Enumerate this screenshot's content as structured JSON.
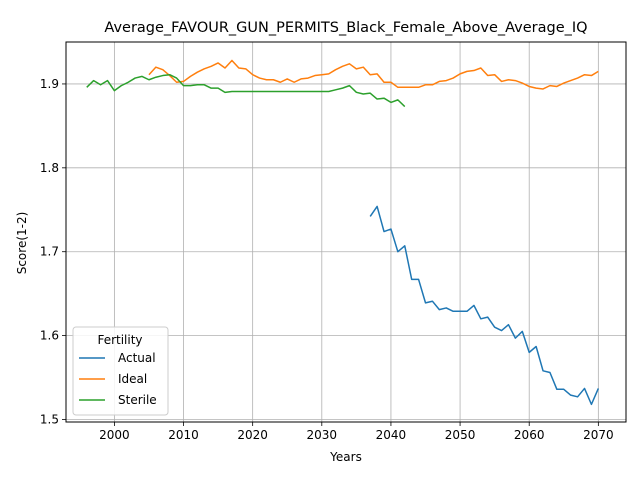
{
  "chart_data": {
    "type": "line",
    "title": "Average_FAVOUR_GUN_PERMITS_Black_Female_Above_Average_IQ",
    "xlabel": "Years",
    "ylabel": "Score(1-2)",
    "xlim": [
      1993,
      2074
    ],
    "ylim": [
      1.497,
      1.95
    ],
    "xticks": [
      2000,
      2010,
      2020,
      2030,
      2040,
      2050,
      2060,
      2070
    ],
    "yticks": [
      1.5,
      1.6,
      1.7,
      1.8,
      1.9
    ],
    "grid": true,
    "legend": {
      "title": "Fertility",
      "position": "lower-left"
    },
    "series": [
      {
        "name": "Actual",
        "color": "#1f77b4",
        "x": [
          2037,
          2038,
          2039,
          2040,
          2041,
          2042,
          2043,
          2044,
          2045,
          2046,
          2047,
          2048,
          2049,
          2050,
          2051,
          2052,
          2053,
          2054,
          2055,
          2056,
          2057,
          2058,
          2059,
          2060,
          2061,
          2062,
          2063,
          2064,
          2065,
          2066,
          2067,
          2068,
          2069,
          2070
        ],
        "y": [
          1.742,
          1.754,
          1.724,
          1.727,
          1.7,
          1.707,
          1.667,
          1.667,
          1.639,
          1.641,
          1.631,
          1.633,
          1.629,
          1.629,
          1.629,
          1.636,
          1.62,
          1.622,
          1.61,
          1.606,
          1.613,
          1.597,
          1.605,
          1.58,
          1.587,
          1.558,
          1.556,
          1.536,
          1.536,
          1.529,
          1.527,
          1.537,
          1.518,
          1.537
        ]
      },
      {
        "name": "Ideal",
        "color": "#ff7f0e",
        "x": [
          2005,
          2006,
          2007,
          2008,
          2009,
          2010,
          2011,
          2012,
          2013,
          2014,
          2015,
          2016,
          2017,
          2018,
          2019,
          2020,
          2021,
          2022,
          2023,
          2024,
          2025,
          2026,
          2027,
          2028,
          2029,
          2030,
          2031,
          2032,
          2033,
          2034,
          2035,
          2036,
          2037,
          2038,
          2039,
          2040,
          2041,
          2042,
          2043,
          2044,
          2045,
          2046,
          2047,
          2048,
          2049,
          2050,
          2051,
          2052,
          2053,
          2054,
          2055,
          2056,
          2057,
          2058,
          2059,
          2060,
          2061,
          2062,
          2063,
          2064,
          2065,
          2066,
          2067,
          2068,
          2069,
          2070
        ],
        "y": [
          1.911,
          1.92,
          1.917,
          1.91,
          1.902,
          1.903,
          1.909,
          1.914,
          1.918,
          1.921,
          1.925,
          1.919,
          1.928,
          1.919,
          1.918,
          1.911,
          1.907,
          1.905,
          1.905,
          1.902,
          1.906,
          1.902,
          1.906,
          1.907,
          1.91,
          1.911,
          1.912,
          1.917,
          1.921,
          1.924,
          1.918,
          1.92,
          1.911,
          1.912,
          1.902,
          1.902,
          1.896,
          1.896,
          1.896,
          1.896,
          1.899,
          1.899,
          1.903,
          1.904,
          1.907,
          1.912,
          1.915,
          1.916,
          1.919,
          1.91,
          1.911,
          1.903,
          1.905,
          1.904,
          1.901,
          1.897,
          1.895,
          1.894,
          1.898,
          1.897,
          1.901,
          1.904,
          1.907,
          1.911,
          1.91,
          1.915
        ]
      },
      {
        "name": "Sterile",
        "color": "#2ca02c",
        "x": [
          1996,
          1997,
          1998,
          1999,
          2000,
          2001,
          2002,
          2003,
          2004,
          2005,
          2006,
          2007,
          2008,
          2009,
          2010,
          2011,
          2012,
          2013,
          2014,
          2015,
          2016,
          2017,
          2018,
          2019,
          2020,
          2021,
          2022,
          2023,
          2024,
          2025,
          2026,
          2027,
          2028,
          2029,
          2030,
          2031,
          2032,
          2033,
          2034,
          2035,
          2036,
          2037,
          2038,
          2039,
          2040,
          2041,
          2042
        ],
        "y": [
          1.896,
          1.904,
          1.899,
          1.904,
          1.892,
          1.898,
          1.902,
          1.907,
          1.909,
          1.905,
          1.908,
          1.91,
          1.911,
          1.907,
          1.898,
          1.898,
          1.899,
          1.899,
          1.895,
          1.895,
          1.89,
          1.891,
          1.891,
          1.891,
          1.891,
          1.891,
          1.891,
          1.891,
          1.891,
          1.891,
          1.891,
          1.891,
          1.891,
          1.891,
          1.891,
          1.891,
          1.893,
          1.895,
          1.898,
          1.89,
          1.888,
          1.889,
          1.882,
          1.883,
          1.878,
          1.881,
          1.873
        ]
      }
    ]
  }
}
